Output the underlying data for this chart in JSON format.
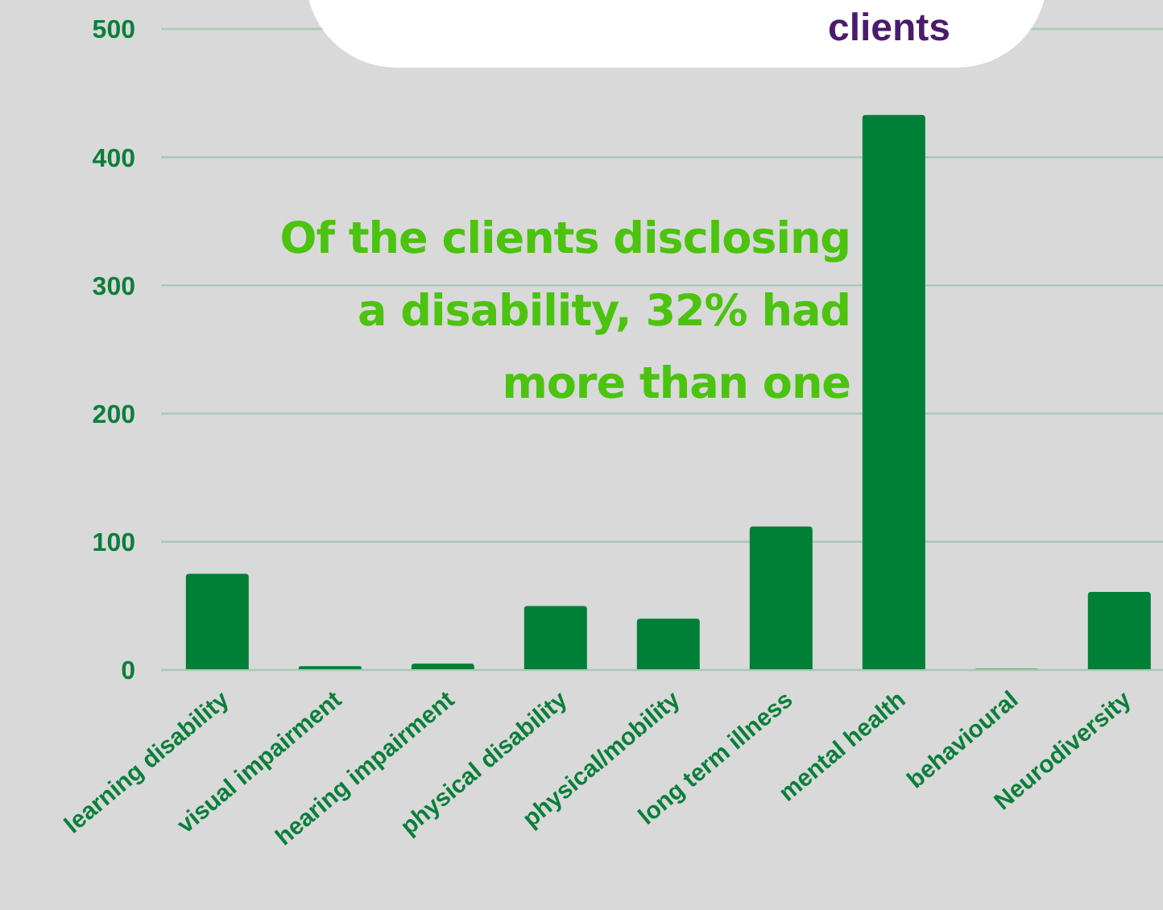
{
  "chart_data": {
    "type": "bar",
    "title": "clients",
    "categories": [
      "learning disability",
      "visual impairment",
      "hearing impairment",
      "physical disability",
      "physical/mobility",
      "long term illness",
      "mental health",
      "behavioural",
      "Neurodiversity"
    ],
    "values": [
      75,
      3,
      5,
      50,
      40,
      112,
      433,
      1,
      61
    ],
    "color": "#007f37",
    "ylim": [
      0,
      500
    ],
    "yticks": [
      0,
      100,
      200,
      300,
      400,
      500
    ],
    "grid": "y",
    "legend": false,
    "annotations": [
      "Of the clients disclosing a disability, 32% had more than one"
    ]
  }
}
